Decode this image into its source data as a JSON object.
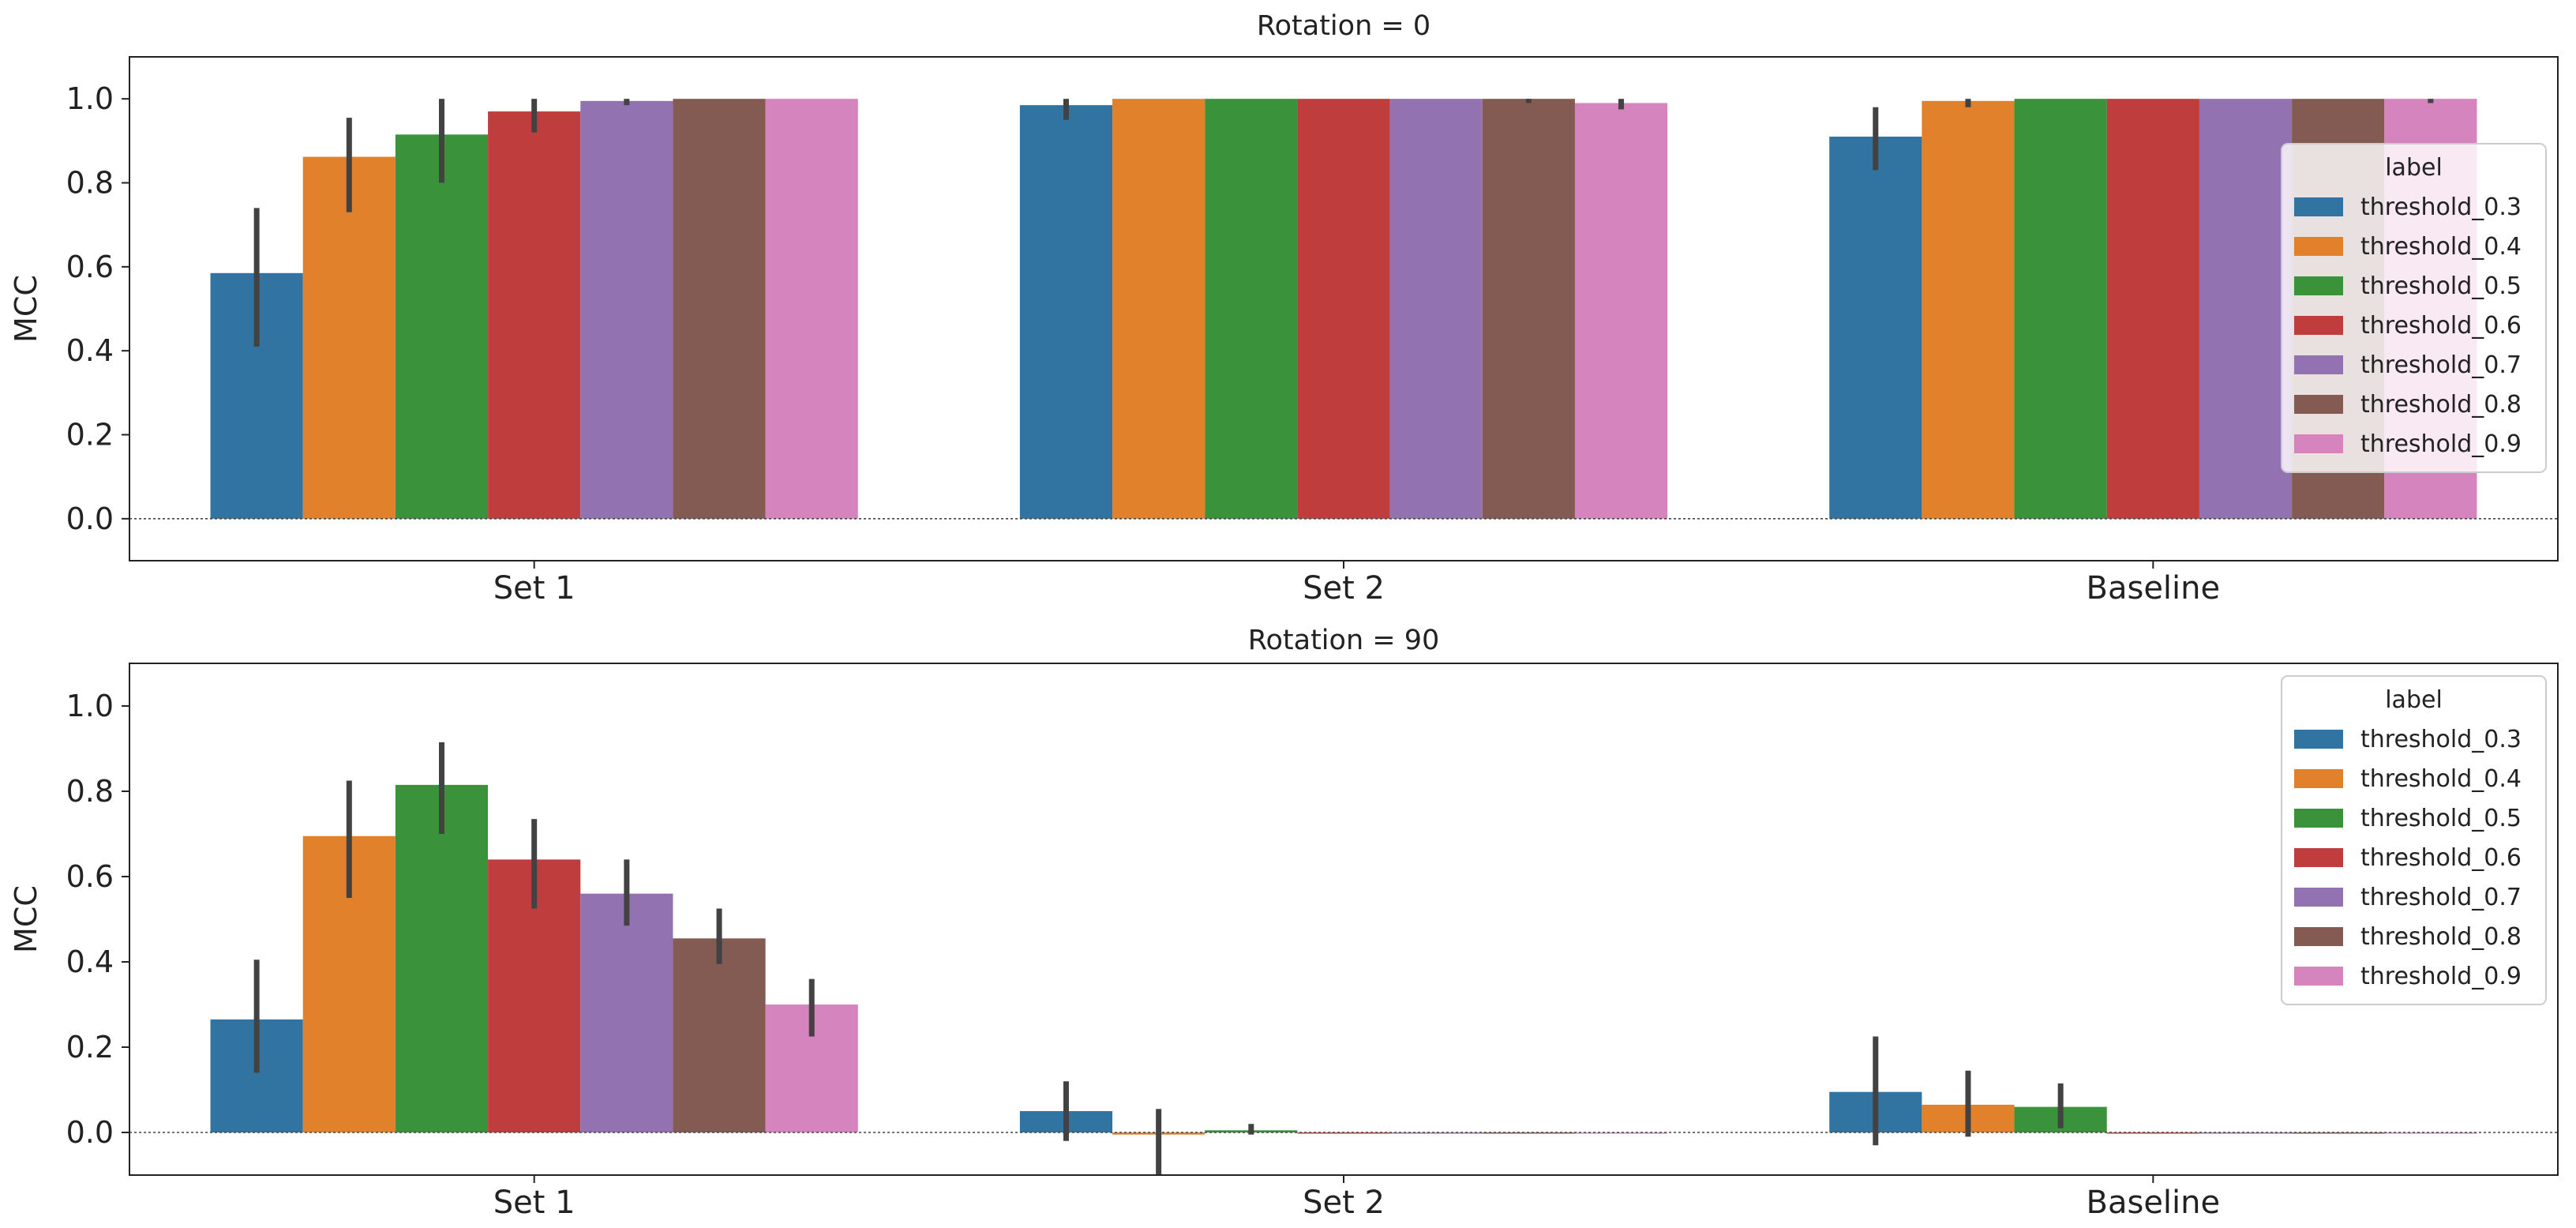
{
  "chart_data": [
    {
      "type": "bar",
      "title": "Rotation = 0",
      "xlabel": "",
      "ylabel": "MCC",
      "ylim": [
        -0.1,
        1.1
      ],
      "yticks": [
        "0.0",
        "0.2",
        "0.4",
        "0.6",
        "0.8",
        "1.0"
      ],
      "categories": [
        "Set 1",
        "Set 2",
        "Baseline"
      ],
      "legend": {
        "title": "label",
        "placement": "right"
      },
      "series": [
        {
          "name": "threshold_0.3",
          "color": "#3274a1",
          "values": [
            0.585,
            0.985,
            0.91
          ],
          "err": [
            [
              0.41,
              0.74
            ],
            [
              0.95,
              1.0
            ],
            [
              0.83,
              0.98
            ]
          ]
        },
        {
          "name": "threshold_0.4",
          "color": "#e1812c",
          "values": [
            0.862,
            1.0,
            0.995
          ],
          "err": [
            [
              0.73,
              0.955
            ],
            [
              1.0,
              1.0
            ],
            [
              0.98,
              1.0
            ]
          ]
        },
        {
          "name": "threshold_0.5",
          "color": "#3a923a",
          "values": [
            0.915,
            1.0,
            1.0
          ],
          "err": [
            [
              0.8,
              1.0
            ],
            [
              1.0,
              1.0
            ],
            [
              1.0,
              1.0
            ]
          ]
        },
        {
          "name": "threshold_0.6",
          "color": "#c03d3e",
          "values": [
            0.97,
            1.0,
            1.0
          ],
          "err": [
            [
              0.92,
              1.0
            ],
            [
              1.0,
              1.0
            ],
            [
              1.0,
              1.0
            ]
          ]
        },
        {
          "name": "threshold_0.7",
          "color": "#9372b2",
          "values": [
            0.995,
            1.0,
            1.0
          ],
          "err": [
            [
              0.985,
              1.0
            ],
            [
              1.0,
              1.0
            ],
            [
              1.0,
              1.0
            ]
          ]
        },
        {
          "name": "threshold_0.8",
          "color": "#845b53",
          "values": [
            1.0,
            1.0,
            1.0
          ],
          "err": [
            [
              1.0,
              1.0
            ],
            [
              0.99,
              1.0
            ],
            [
              1.0,
              1.0
            ]
          ]
        },
        {
          "name": "threshold_0.9",
          "color": "#d684bd",
          "values": [
            1.0,
            0.99,
            1.0
          ],
          "err": [
            [
              1.0,
              1.0
            ],
            [
              0.975,
              1.0
            ],
            [
              0.99,
              1.0
            ]
          ]
        }
      ]
    },
    {
      "type": "bar",
      "title": "Rotation = 90",
      "xlabel": "",
      "ylabel": "MCC",
      "ylim": [
        -0.1,
        1.1
      ],
      "yticks": [
        "0.0",
        "0.2",
        "0.4",
        "0.6",
        "0.8",
        "1.0"
      ],
      "categories": [
        "Set 1",
        "Set 2",
        "Baseline"
      ],
      "legend": {
        "title": "label",
        "placement": "top-right"
      },
      "series": [
        {
          "name": "threshold_0.3",
          "color": "#3274a1",
          "values": [
            0.265,
            0.05,
            0.095
          ],
          "err": [
            [
              0.14,
              0.405
            ],
            [
              -0.02,
              0.12
            ],
            [
              -0.03,
              0.225
            ]
          ]
        },
        {
          "name": "threshold_0.4",
          "color": "#e1812c",
          "values": [
            0.695,
            -0.005,
            0.065
          ],
          "err": [
            [
              0.55,
              0.825
            ],
            [
              -0.1,
              0.055
            ],
            [
              -0.01,
              0.145
            ]
          ]
        },
        {
          "name": "threshold_0.5",
          "color": "#3a923a",
          "values": [
            0.815,
            0.005,
            0.06
          ],
          "err": [
            [
              0.7,
              0.915
            ],
            [
              -0.005,
              0.02
            ],
            [
              0.01,
              0.115
            ]
          ]
        },
        {
          "name": "threshold_0.6",
          "color": "#c03d3e",
          "values": [
            0.64,
            0.0,
            0.0
          ],
          "err": [
            [
              0.525,
              0.735
            ],
            [
              0.0,
              0.0
            ],
            [
              0.0,
              0.0
            ]
          ]
        },
        {
          "name": "threshold_0.7",
          "color": "#9372b2",
          "values": [
            0.56,
            0.0,
            0.0
          ],
          "err": [
            [
              0.485,
              0.64
            ],
            [
              0.0,
              0.0
            ],
            [
              0.0,
              0.0
            ]
          ]
        },
        {
          "name": "threshold_0.8",
          "color": "#845b53",
          "values": [
            0.455,
            0.0,
            0.0
          ],
          "err": [
            [
              0.395,
              0.525
            ],
            [
              0.0,
              0.0
            ],
            [
              0.0,
              0.0
            ]
          ]
        },
        {
          "name": "threshold_0.9",
          "color": "#d684bd",
          "values": [
            0.3,
            0.0,
            0.0
          ],
          "err": [
            [
              0.225,
              0.36
            ],
            [
              0.0,
              0.0
            ],
            [
              0.0,
              0.0
            ]
          ]
        }
      ]
    }
  ]
}
